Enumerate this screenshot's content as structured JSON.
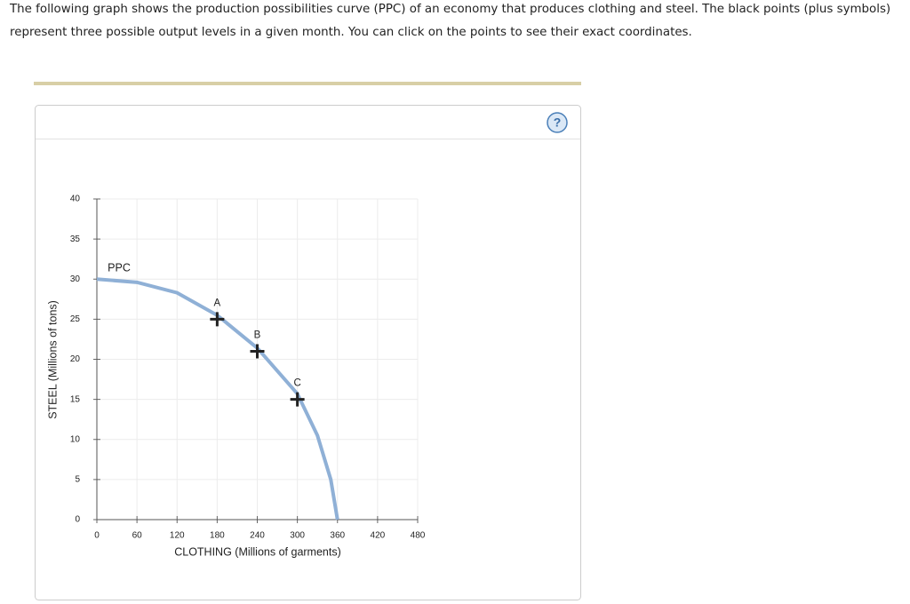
{
  "instructions": [
    "The following graph shows the production possibilities curve (PPC) of an economy that produces clothing and steel. The black points (plus symbols)",
    "represent three possible output levels in a given month. You can click on the points to see their exact coordinates."
  ],
  "help_icon": "?",
  "chart_data": {
    "type": "line",
    "x_label": "CLOTHING (Millions of garments)",
    "y_label": "STEEL (Millions of tons)",
    "xlim": [
      0,
      480
    ],
    "ylim": [
      0,
      40
    ],
    "xticks": [
      0,
      60,
      120,
      180,
      240,
      300,
      360,
      420,
      480
    ],
    "yticks": [
      0,
      5,
      10,
      15,
      20,
      25,
      30,
      35,
      40
    ],
    "grid": true,
    "series": [
      {
        "name": "PPC",
        "color": "#8fb0d6",
        "x": [
          0,
          60,
          120,
          180,
          240,
          300,
          330,
          350,
          360
        ],
        "values": [
          30,
          29.6,
          28.3,
          25.5,
          21.4,
          15.7,
          10.5,
          5,
          0
        ]
      }
    ],
    "points": [
      {
        "label": "A",
        "x": 180,
        "y": 25
      },
      {
        "label": "B",
        "x": 240,
        "y": 21
      },
      {
        "label": "C",
        "x": 300,
        "y": 15
      }
    ]
  }
}
